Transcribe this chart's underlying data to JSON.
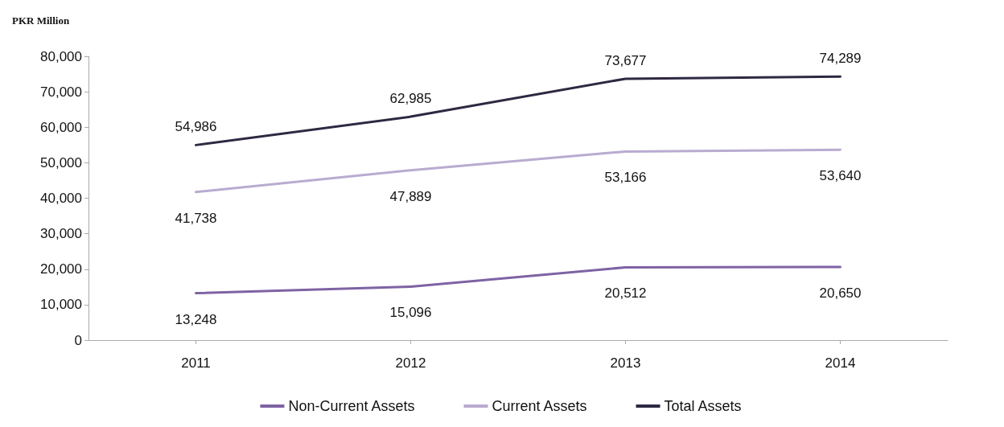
{
  "chart_data": {
    "type": "line",
    "ylabel": "PKR Million",
    "categories": [
      "2011",
      "2012",
      "2013",
      "2014"
    ],
    "series": [
      {
        "name": "Non-Current Assets",
        "color": "#7e63a3",
        "values": [
          13248,
          15096,
          20512,
          20650
        ],
        "value_labels": [
          "13,248",
          "15,096",
          "20,512",
          "20,650"
        ]
      },
      {
        "name": "Current Assets",
        "color": "#b9abd0",
        "values": [
          41738,
          47889,
          53166,
          53640
        ],
        "value_labels": [
          "41,738",
          "47,889",
          "53,166",
          "53,640"
        ]
      },
      {
        "name": "Total Assets",
        "color": "#2f2842",
        "values": [
          54986,
          62985,
          73677,
          74289
        ],
        "value_labels": [
          "54,986",
          "62,985",
          "73,677",
          "74,289"
        ]
      }
    ],
    "ylim": [
      0,
      80000
    ],
    "yticks": [
      0,
      {
        "value": 10000,
        "label": "10,000"
      },
      {
        "value": 20000,
        "label": "20,000"
      },
      {
        "value": 30000,
        "label": "30,000"
      },
      {
        "value": 40000,
        "label": "40,000"
      },
      {
        "value": 50000,
        "label": "50,000"
      },
      {
        "value": 60000,
        "label": "60,000"
      },
      {
        "value": 70000,
        "label": "70,000"
      },
      {
        "value": 80000,
        "label": "80,000"
      }
    ],
    "grid": false,
    "legend": "bottom",
    "marker": "none",
    "line_style": "solid"
  }
}
